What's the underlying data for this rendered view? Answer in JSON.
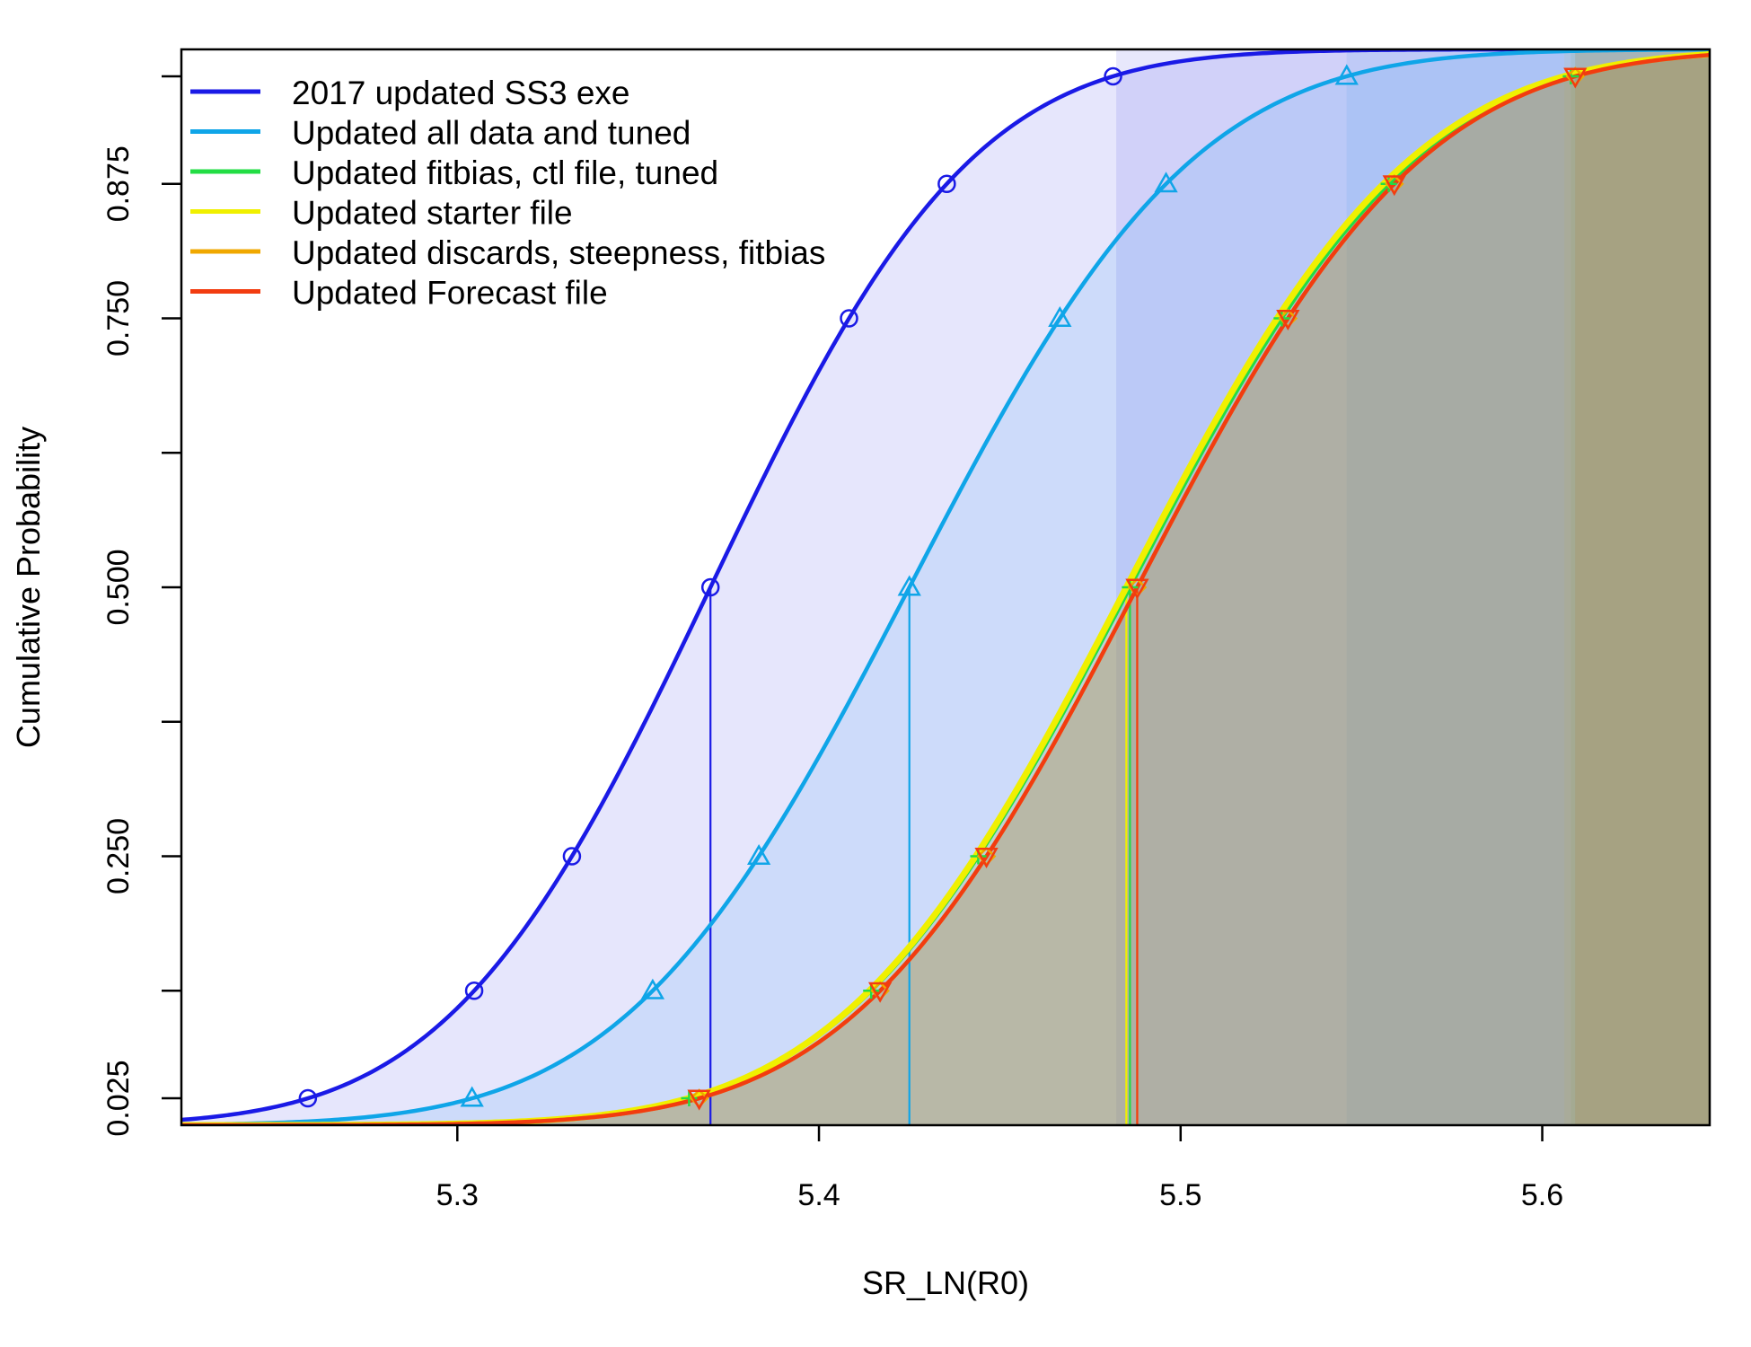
{
  "chart_data": {
    "type": "line",
    "title": "",
    "xlabel": "SR_LN(R0)",
    "ylabel": "Cumulative Probability",
    "xlim": [
      5.2237,
      5.6463
    ],
    "ylim": [
      0.0,
      1.0
    ],
    "x_ticks": [
      {
        "value": 5.3,
        "label": "5.3"
      },
      {
        "value": 5.4,
        "label": "5.4"
      },
      {
        "value": 5.5,
        "label": "5.5"
      },
      {
        "value": 5.6,
        "label": "5.6"
      }
    ],
    "y_ticks": [
      {
        "value": 0.025,
        "label": "0.025"
      },
      {
        "value": 0.125,
        "label": ""
      },
      {
        "value": 0.25,
        "label": "0.250"
      },
      {
        "value": 0.375,
        "label": ""
      },
      {
        "value": 0.5,
        "label": "0.500"
      },
      {
        "value": 0.625,
        "label": ""
      },
      {
        "value": 0.75,
        "label": "0.750"
      },
      {
        "value": 0.875,
        "label": "0.875"
      },
      {
        "value": 0.975,
        "label": ""
      }
    ],
    "grid": false,
    "legend_position": "top-left",
    "series": [
      {
        "name": "2017 updated SS3 exe",
        "color": "#1a1ae6",
        "fill": "#1a1ae6",
        "mean": 5.37,
        "sd": 0.0568,
        "marker": "circle",
        "shade_from": 5.4822
      },
      {
        "name": "Updated all data and tuned",
        "color": "#0fa5e8",
        "fill": "#2a8ff0",
        "mean": 5.425,
        "sd": 0.0617,
        "marker": "triangle-up",
        "shade_from": 5.5459
      },
      {
        "name": "Updated fitbias, ctl file, tuned",
        "color": "#22dd44",
        "fill": "#5aa860",
        "mean": 5.486,
        "sd": 0.0622,
        "marker": "plus",
        "shade_from": 5.6079
      },
      {
        "name": "Updated starter file",
        "color": "#f0f000",
        "fill": "#c8c050",
        "mean": 5.485,
        "sd": 0.0618,
        "marker": "none",
        "shade_from": 5.6061
      },
      {
        "name": "Updated discards, steepness, fitbias",
        "color": "#f0a800",
        "fill": "#c89830",
        "mean": 5.488,
        "sd": 0.0618,
        "marker": "diamond",
        "shade_from": 5.6091
      },
      {
        "name": "Updated Forecast file",
        "color": "#f23c10",
        "fill": "#a07840",
        "mean": 5.488,
        "sd": 0.0618,
        "marker": "triangle-down",
        "shade_from": 5.6091
      }
    ]
  }
}
